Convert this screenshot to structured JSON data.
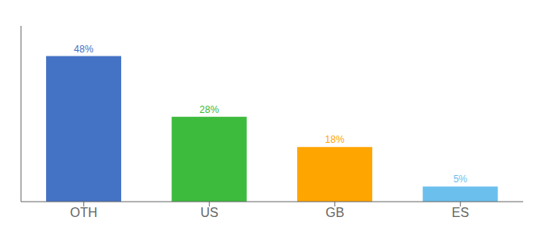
{
  "chart_data": {
    "type": "bar",
    "categories": [
      "OTH",
      "US",
      "GB",
      "ES"
    ],
    "values": [
      48,
      28,
      18,
      5
    ],
    "value_labels": [
      "48%",
      "28%",
      "18%",
      "5%"
    ],
    "colors": [
      "#4472C4",
      "#3DBB3D",
      "#FFA500",
      "#6BBFED"
    ],
    "ylim": [
      0,
      58
    ],
    "data_labels": true,
    "tick_labels": "x",
    "grid": false
  }
}
